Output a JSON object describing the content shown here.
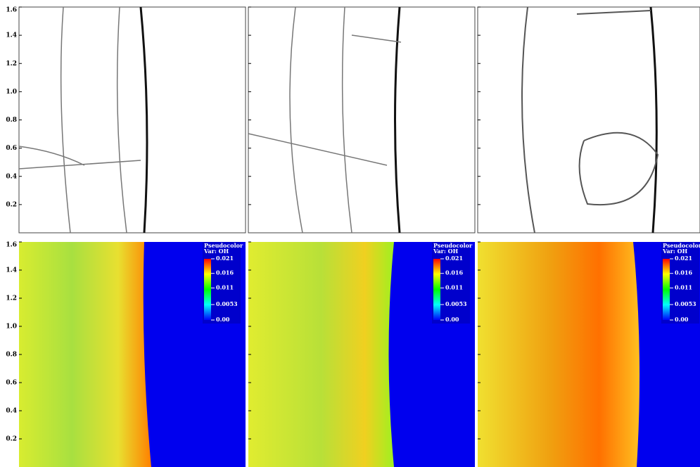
{
  "top_yticks": [
    0.2,
    0.4,
    0.6,
    0.8,
    {
      "value": 1.0,
      "label": "1.0"
    },
    1.2,
    1.4,
    1.6
  ],
  "bottom_yticks": [
    0.2,
    0.4,
    0.6,
    0.8,
    {
      "value": 1.0,
      "label": "1.0"
    },
    1.2,
    1.4,
    1.6
  ],
  "colorbars": [
    {
      "title": "Pseudocolor",
      "variable": "Var: OH",
      "ticks": [
        0.021,
        0.016,
        0.011,
        0.0053,
        {
          "value": 0,
          "label": "0.00"
        }
      ]
    },
    {
      "title": "Pseudocolor",
      "variable": "Var: OH",
      "ticks": [
        0.021,
        0.016,
        0.011,
        0.0053,
        {
          "value": 0,
          "label": "0.00"
        }
      ]
    },
    {
      "title": "Pseudocolor",
      "variable": "Var: OH",
      "ticks": [
        0.021,
        0.016,
        0.011,
        0.0053,
        {
          "value": 0,
          "label": "0.00"
        }
      ]
    }
  ]
}
